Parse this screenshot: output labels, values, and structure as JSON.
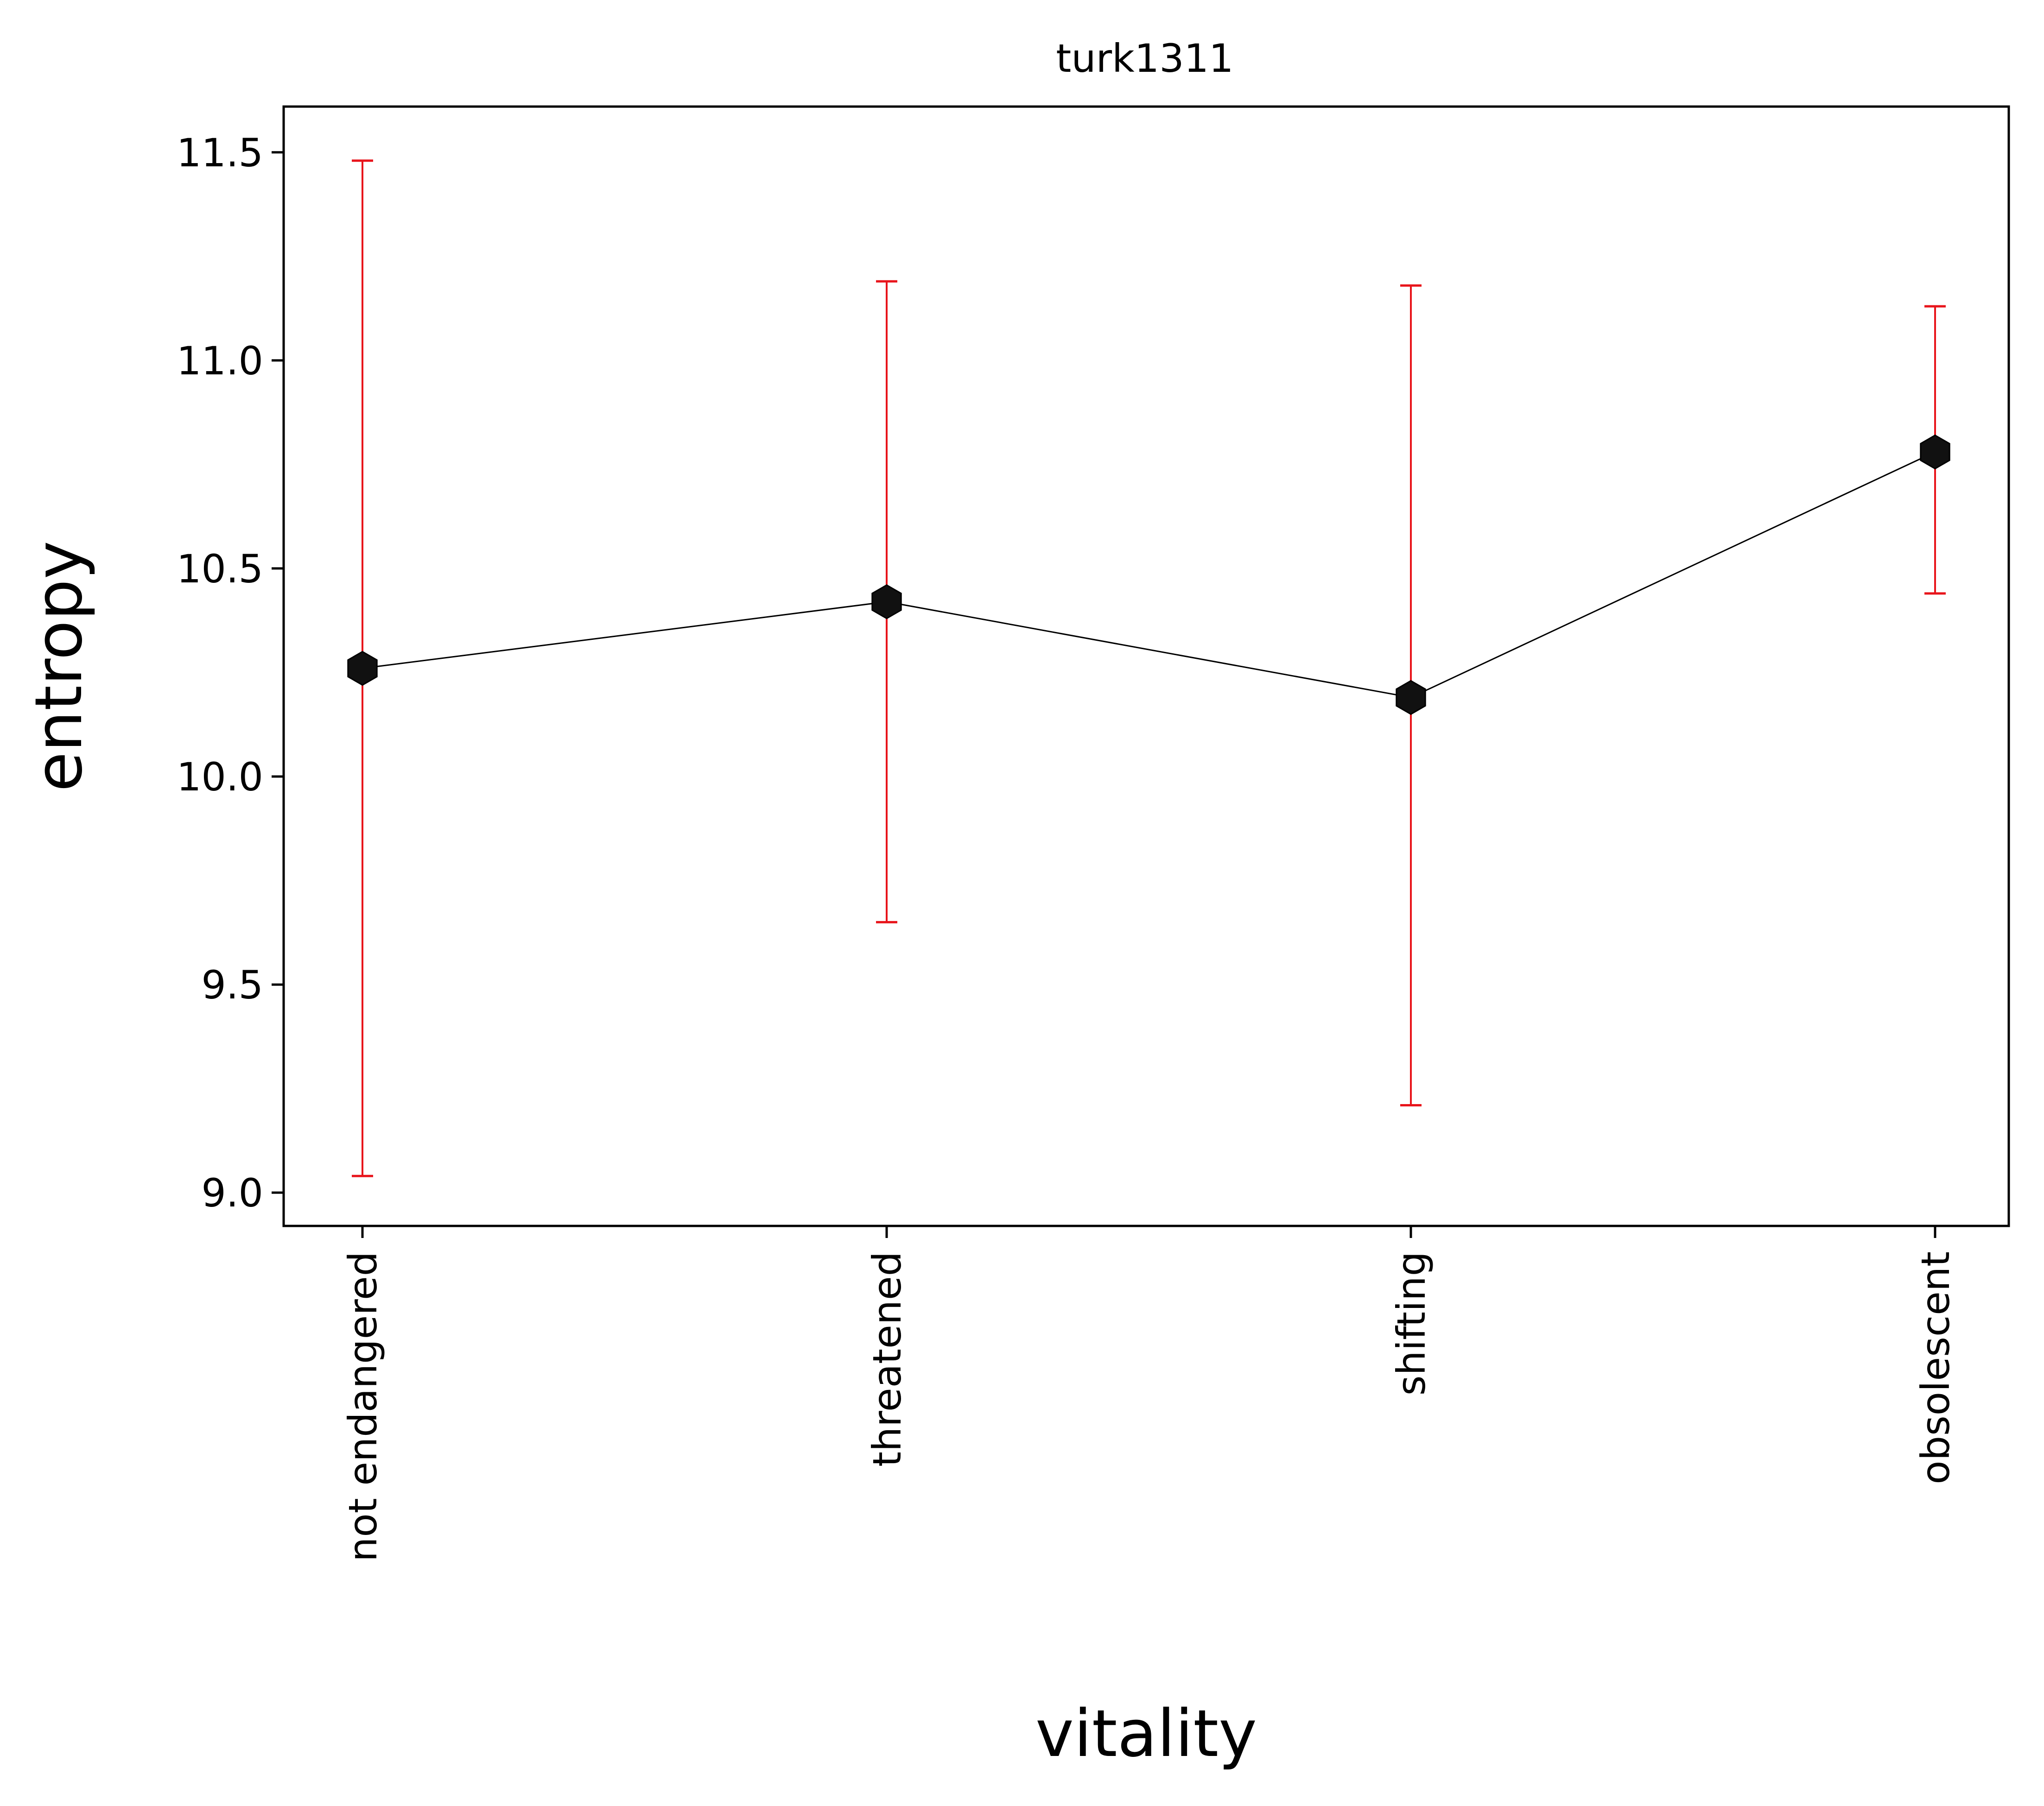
{
  "chart_data": {
    "type": "line",
    "title": "turk1311",
    "xlabel": "vitality",
    "ylabel": "entropy",
    "categories": [
      "not endangered",
      "threatened",
      "shifting",
      "obsolescent"
    ],
    "series": [
      {
        "values": [
          10.26,
          10.42,
          10.19,
          10.78
        ],
        "error_low": [
          9.04,
          9.65,
          9.21,
          10.44
        ],
        "error_high": [
          11.48,
          11.19,
          11.18,
          11.13
        ]
      }
    ],
    "y_ticks": [
      "9.0",
      "9.5",
      "10.0",
      "10.5",
      "11.0",
      "11.5"
    ],
    "ylim": [
      8.92,
      11.61
    ],
    "grid": false,
    "legend": "none",
    "colors": {
      "line": "#000000",
      "marker": "#111111",
      "error_bar": "#e8141b"
    },
    "marker_shape": "hexagon"
  }
}
